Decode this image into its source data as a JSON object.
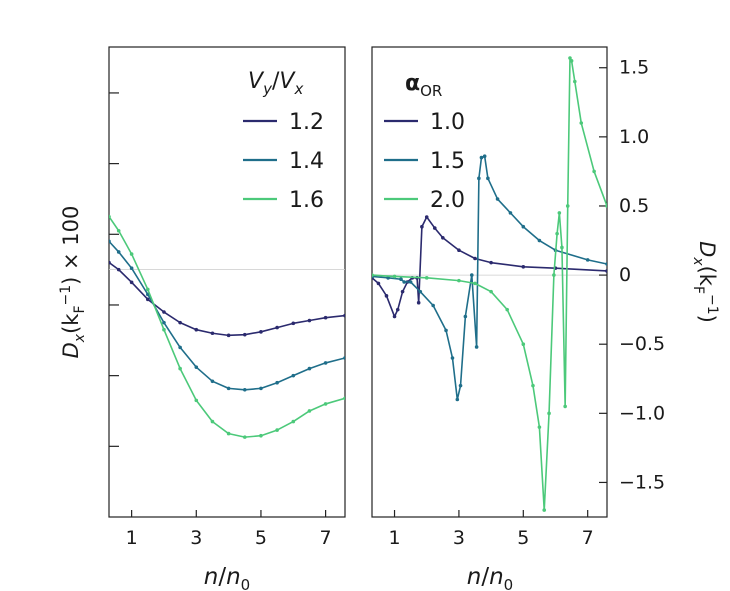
{
  "chart_data": [
    {
      "type": "line",
      "panel": "left",
      "xlabel_main": "n",
      "xlabel_sub": "0",
      "xlabel_sep": "/",
      "ylabel": "Dx(kF−1) × 100",
      "ylabel_parts": {
        "main": "D",
        "sub": "x",
        "paren_open": "(k",
        "sub_f": "F",
        "sup": "−1",
        "tail": ") × 100"
      },
      "xlim": [
        0.3,
        7.6
      ],
      "ylim": [
        -3.5,
        3.15
      ],
      "xticks": [
        1,
        3,
        5,
        7
      ],
      "yticks": [
        2.5,
        1.5,
        0.5,
        -0.5,
        -1.5,
        -2.5
      ],
      "reference_line": 0,
      "legend": {
        "title_main": "V",
        "title_sub1": "y",
        "title_sep": "/",
        "title_main2": "V",
        "title_sub2": "x",
        "entries": [
          "1.2",
          "1.4",
          "1.6"
        ],
        "placement": "top-right"
      },
      "series": [
        {
          "name": "1.2",
          "color": "#2b2a6e",
          "x": [
            0.3,
            0.6,
            1.0,
            1.5,
            2.0,
            2.5,
            3.0,
            3.5,
            4.0,
            4.5,
            5.0,
            5.5,
            6.0,
            6.5,
            7.0,
            7.6
          ],
          "y": [
            0.1,
            0.0,
            -0.18,
            -0.42,
            -0.6,
            -0.75,
            -0.85,
            -0.9,
            -0.93,
            -0.92,
            -0.88,
            -0.82,
            -0.76,
            -0.72,
            -0.68,
            -0.65
          ]
        },
        {
          "name": "1.4",
          "color": "#1f6e8a",
          "x": [
            0.3,
            0.6,
            1.0,
            1.5,
            2.0,
            2.5,
            3.0,
            3.5,
            4.0,
            4.5,
            5.0,
            5.5,
            6.0,
            6.5,
            7.0,
            7.6
          ],
          "y": [
            0.4,
            0.25,
            0.02,
            -0.35,
            -0.75,
            -1.1,
            -1.38,
            -1.58,
            -1.68,
            -1.7,
            -1.68,
            -1.6,
            -1.5,
            -1.4,
            -1.32,
            -1.25
          ]
        },
        {
          "name": "1.6",
          "color": "#4cc97a",
          "x": [
            0.3,
            0.6,
            1.0,
            1.5,
            2.0,
            2.5,
            3.0,
            3.5,
            4.0,
            4.5,
            5.0,
            5.5,
            6.0,
            6.5,
            7.0,
            7.6
          ],
          "y": [
            0.75,
            0.55,
            0.22,
            -0.28,
            -0.85,
            -1.4,
            -1.85,
            -2.15,
            -2.32,
            -2.37,
            -2.35,
            -2.27,
            -2.15,
            -2.0,
            -1.9,
            -1.82
          ]
        }
      ]
    },
    {
      "type": "line",
      "panel": "right",
      "xlabel_main": "n",
      "xlabel_sub": "0",
      "xlabel_sep": "/",
      "ylabel_parts": {
        "main": "D",
        "sub": "x",
        "paren_open": "(k",
        "sub_f": "F",
        "sup": "−1",
        "tail": ")"
      },
      "xlim": [
        0.3,
        7.6
      ],
      "ylim": [
        -1.75,
        1.65
      ],
      "xticks": [
        1,
        3,
        5,
        7
      ],
      "yticks": [
        1.5,
        1.0,
        0.5,
        0,
        -0.5,
        -1.0,
        -1.5
      ],
      "ytick_labels": [
        "1.5",
        "1.0",
        "0.5",
        "0",
        "−0.5",
        "−1.0",
        "−1.5"
      ],
      "reference_line": 0,
      "legend": {
        "title_main": "α",
        "title_sub": "OR",
        "entries": [
          "1.0",
          "1.5",
          "2.0"
        ],
        "placement": "top-left"
      },
      "series": [
        {
          "name": "1.0",
          "color": "#2b2a6e",
          "x": [
            0.3,
            0.5,
            0.75,
            1.0,
            1.1,
            1.25,
            1.4,
            1.55,
            1.7,
            1.75,
            1.85,
            2.0,
            2.25,
            2.5,
            3.0,
            3.5,
            4.0,
            5.0,
            6.0,
            7.6
          ],
          "y": [
            -0.02,
            -0.06,
            -0.15,
            -0.3,
            -0.25,
            -0.12,
            -0.05,
            -0.02,
            -0.02,
            -0.2,
            0.35,
            0.42,
            0.34,
            0.27,
            0.18,
            0.12,
            0.09,
            0.06,
            0.05,
            0.03
          ]
        },
        {
          "name": "1.5",
          "color": "#1f6e8a",
          "x": [
            0.3,
            0.8,
            1.2,
            1.3,
            1.5,
            1.8,
            2.2,
            2.6,
            2.8,
            2.95,
            3.05,
            3.2,
            3.4,
            3.55,
            3.62,
            3.7,
            3.8,
            3.9,
            4.2,
            4.6,
            5.0,
            5.5,
            6.0,
            7.0,
            7.6
          ],
          "y": [
            -0.01,
            -0.02,
            -0.03,
            -0.05,
            -0.05,
            -0.12,
            -0.22,
            -0.4,
            -0.6,
            -0.9,
            -0.8,
            -0.3,
            0.0,
            -0.52,
            0.7,
            0.85,
            0.86,
            0.7,
            0.55,
            0.45,
            0.35,
            0.25,
            0.18,
            0.11,
            0.08
          ]
        },
        {
          "name": "2.0",
          "color": "#4cc97a",
          "x": [
            0.3,
            1.0,
            2.0,
            3.0,
            3.5,
            4.0,
            4.5,
            5.0,
            5.3,
            5.5,
            5.65,
            5.8,
            5.95,
            6.05,
            6.12,
            6.2,
            6.3,
            6.38,
            6.45,
            6.5,
            6.6,
            6.8,
            7.2,
            7.6
          ],
          "y": [
            0.0,
            -0.01,
            -0.02,
            -0.04,
            -0.06,
            -0.12,
            -0.25,
            -0.5,
            -0.8,
            -1.1,
            -1.7,
            -1.0,
            0.0,
            0.3,
            0.45,
            0.2,
            -0.95,
            0.5,
            1.57,
            1.55,
            1.4,
            1.1,
            0.75,
            0.5
          ]
        }
      ]
    }
  ]
}
